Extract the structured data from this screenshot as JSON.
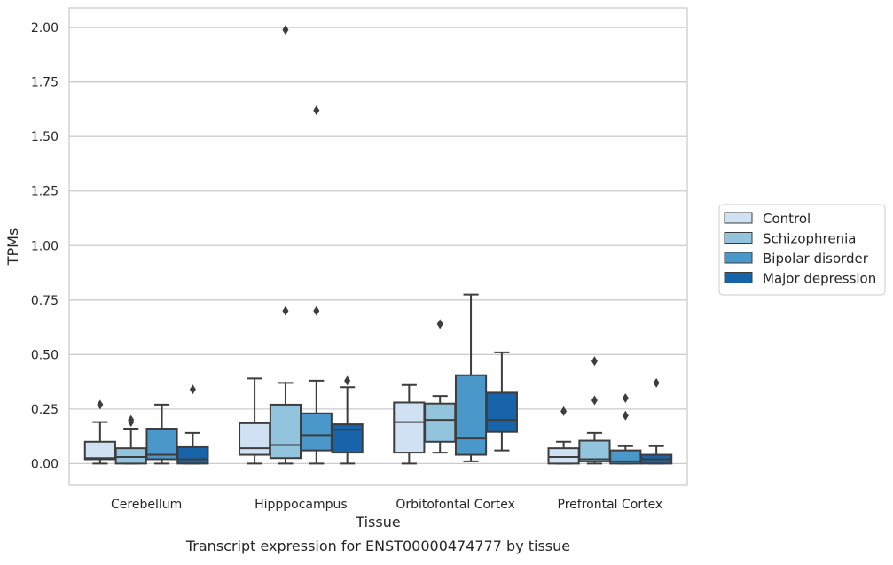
{
  "chart_data": {
    "type": "box",
    "xlabel": "Tissue",
    "ylabel": "TPMs",
    "caption": "Transcript expression for ENST00000474777 by tissue",
    "ylim": [
      -0.1,
      2.09
    ],
    "yticks": [
      0.0,
      0.25,
      0.5,
      0.75,
      1.0,
      1.25,
      1.5,
      1.75,
      2.0
    ],
    "ytick_labels": [
      "0.00",
      "0.25",
      "0.50",
      "0.75",
      "1.00",
      "1.25",
      "1.50",
      "1.75",
      "2.00"
    ],
    "categories": [
      "Cerebellum",
      "Hipppocampus",
      "Orbitofontal Cortex",
      "Prefrontal Cortex"
    ],
    "grid": true,
    "legend_position": "right",
    "colors": {
      "Control": "#cfe1f2",
      "Schizophrenia": "#93c4de",
      "Bipolar disorder": "#4a98c9",
      "Major depression": "#1764ab",
      "line": "#3d3d3d",
      "grid": "#cccccc",
      "frame": "#cccccc"
    },
    "series": [
      {
        "name": "Control",
        "boxes": [
          {
            "whislo": 0.0,
            "q1": 0.02,
            "med": 0.025,
            "q3": 0.1,
            "whishi": 0.19,
            "fliers": [
              0.27
            ]
          },
          {
            "whislo": 0.0,
            "q1": 0.04,
            "med": 0.07,
            "q3": 0.185,
            "whishi": 0.39,
            "fliers": []
          },
          {
            "whislo": 0.0,
            "q1": 0.05,
            "med": 0.19,
            "q3": 0.28,
            "whishi": 0.36,
            "fliers": []
          },
          {
            "whislo": 0.0,
            "q1": 0.0,
            "med": 0.03,
            "q3": 0.07,
            "whishi": 0.1,
            "fliers": [
              0.24
            ]
          }
        ]
      },
      {
        "name": "Schizophrenia",
        "boxes": [
          {
            "whislo": 0.0,
            "q1": 0.0,
            "med": 0.03,
            "q3": 0.07,
            "whishi": 0.16,
            "fliers": [
              0.19,
              0.2
            ]
          },
          {
            "whislo": 0.0,
            "q1": 0.025,
            "med": 0.085,
            "q3": 0.27,
            "whishi": 0.37,
            "fliers": [
              0.7,
              1.99
            ]
          },
          {
            "whislo": 0.05,
            "q1": 0.1,
            "med": 0.2,
            "q3": 0.275,
            "whishi": 0.31,
            "fliers": [
              0.64
            ]
          },
          {
            "whislo": 0.0,
            "q1": 0.01,
            "med": 0.02,
            "q3": 0.105,
            "whishi": 0.14,
            "fliers": [
              0.29,
              0.47
            ]
          }
        ]
      },
      {
        "name": "Bipolar disorder",
        "boxes": [
          {
            "whislo": 0.0,
            "q1": 0.02,
            "med": 0.04,
            "q3": 0.16,
            "whishi": 0.27,
            "fliers": []
          },
          {
            "whislo": 0.0,
            "q1": 0.06,
            "med": 0.13,
            "q3": 0.23,
            "whishi": 0.38,
            "fliers": [
              0.7,
              1.62
            ]
          },
          {
            "whislo": 0.01,
            "q1": 0.04,
            "med": 0.115,
            "q3": 0.405,
            "whishi": 0.775,
            "fliers": []
          },
          {
            "whislo": 0.0,
            "q1": 0.0,
            "med": 0.01,
            "q3": 0.06,
            "whishi": 0.08,
            "fliers": [
              0.22,
              0.3
            ]
          }
        ]
      },
      {
        "name": "Major depression",
        "boxes": [
          {
            "whislo": 0.0,
            "q1": 0.0,
            "med": 0.02,
            "q3": 0.075,
            "whishi": 0.14,
            "fliers": [
              0.34
            ]
          },
          {
            "whislo": 0.0,
            "q1": 0.05,
            "med": 0.155,
            "q3": 0.18,
            "whishi": 0.35,
            "fliers": [
              0.38
            ]
          },
          {
            "whislo": 0.06,
            "q1": 0.145,
            "med": 0.2,
            "q3": 0.325,
            "whishi": 0.51,
            "fliers": []
          },
          {
            "whislo": 0.0,
            "q1": 0.0,
            "med": 0.02,
            "q3": 0.04,
            "whishi": 0.08,
            "fliers": [
              0.37
            ]
          }
        ]
      }
    ]
  }
}
